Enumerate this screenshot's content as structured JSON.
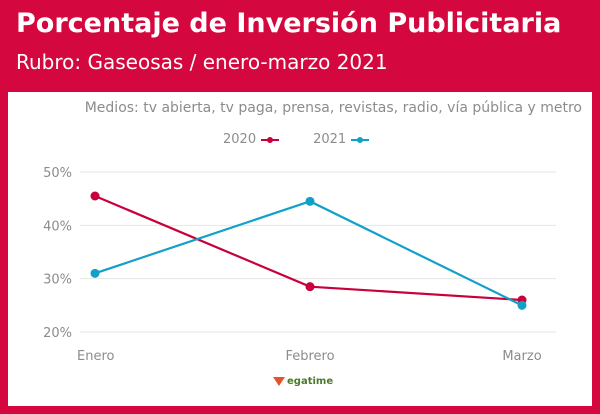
{
  "header": {
    "title": "Porcentaje de Inversión Publicitaria",
    "subtitle": "Rubro: Gaseosas / enero-marzo 2021"
  },
  "note": "Medios: tv abierta, tv paga, prensa, revistas, radio, vía pública y metro",
  "logo": {
    "text": "egatime",
    "icon": "megatime-logo-icon"
  },
  "colors": {
    "background": "#d4073f",
    "series_2020": "#c8003c",
    "series_2021": "#12a0c8"
  },
  "chart_data": {
    "type": "line",
    "categories": [
      "Enero",
      "Febrero",
      "Marzo"
    ],
    "series": [
      {
        "name": "2020",
        "color": "#c8003c",
        "values": [
          45.5,
          28.5,
          26.0
        ]
      },
      {
        "name": "2021",
        "color": "#12a0c8",
        "values": [
          31.0,
          44.5,
          25.0
        ]
      }
    ],
    "ylim": [
      20,
      50
    ],
    "yticks": [
      20,
      30,
      40,
      50
    ],
    "ytick_labels": [
      "20%",
      "30%",
      "40%",
      "50%"
    ],
    "grid": true,
    "legend": "top-center"
  }
}
